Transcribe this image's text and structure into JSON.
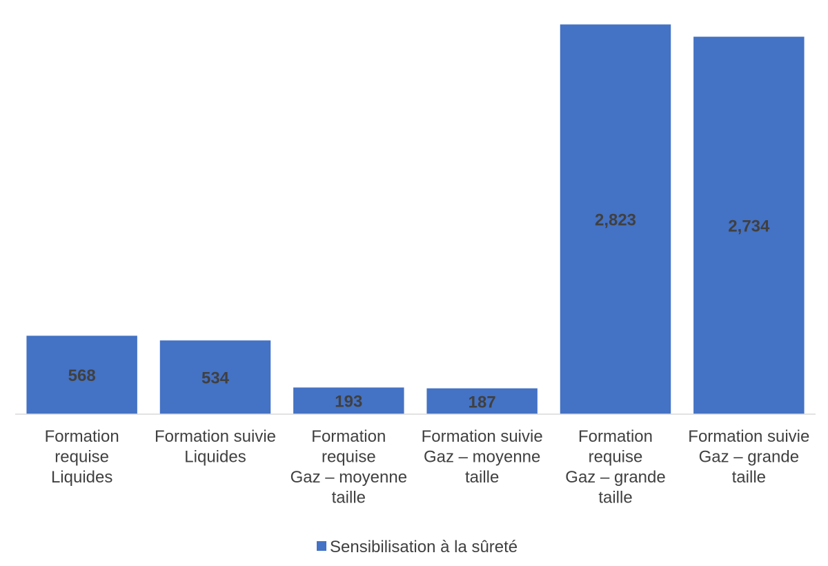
{
  "chart_data": {
    "type": "bar",
    "categories": [
      [
        "Formation",
        "requise",
        "Liquides"
      ],
      [
        "Formation suivie",
        "Liquides"
      ],
      [
        "Formation",
        "requise",
        "Gaz – moyenne",
        "taille"
      ],
      [
        "Formation suivie",
        "Gaz – moyenne",
        "taille"
      ],
      [
        "Formation",
        "requise",
        "Gaz – grande",
        "taille"
      ],
      [
        "Formation suivie",
        "Gaz – grande",
        "taille"
      ]
    ],
    "series": [
      {
        "name": "Sensibilisation à la sûreté",
        "values": [
          568,
          534,
          193,
          187,
          2823,
          2734
        ],
        "value_labels": [
          "568",
          "534",
          "193",
          "187",
          "2,823",
          "2,734"
        ],
        "color": "#4472C4"
      }
    ],
    "ylim": [
      0,
      2900
    ],
    "grid": false,
    "legend_position": "bottom"
  }
}
